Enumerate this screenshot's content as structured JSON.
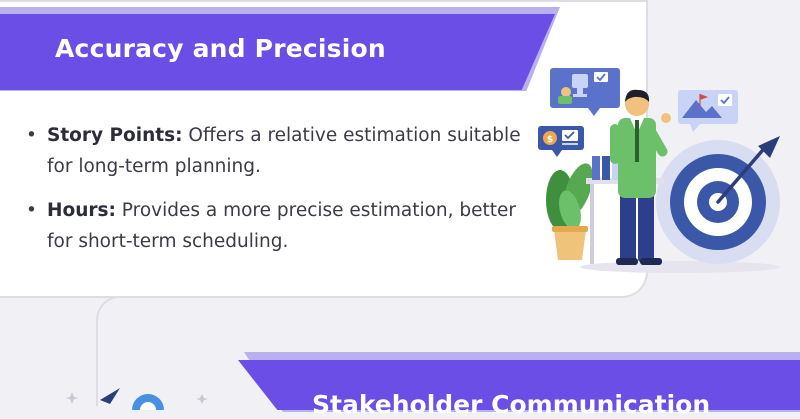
{
  "section1": {
    "title": "Accuracy and Precision",
    "points": [
      {
        "term": "Story Points:",
        "text": " Offers a relative estimation suitable for long-term planning."
      },
      {
        "term": "Hours:",
        "text": " Provides a more precise estimation, better for short-term scheduling."
      }
    ]
  },
  "section2": {
    "title": "Stakeholder Communication"
  },
  "bullet": "•",
  "colors": {
    "accent": "#6b4ee6",
    "accent_light": "#b9b0f0",
    "target_blue": "#3a57a8",
    "shirt_green": "#6dc06a",
    "background": "#f1f0f5"
  },
  "illustration_icons": [
    "trophy-chat-icon",
    "money-chat-icon",
    "mountain-flag-chat-icon",
    "businessman-icon",
    "target-arrow-icon",
    "potted-plant-icon",
    "binders-icon"
  ]
}
